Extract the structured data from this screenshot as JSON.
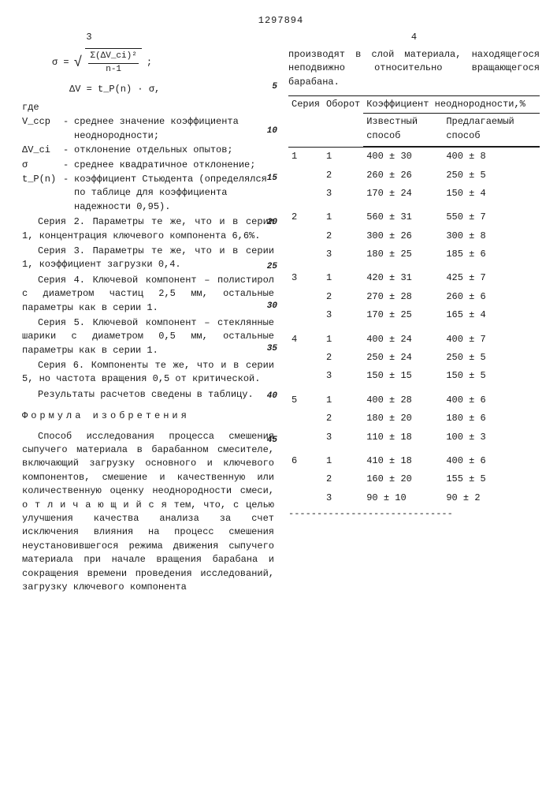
{
  "patent_number": "1297894",
  "page_left": "3",
  "page_right": "4",
  "formula1": {
    "lhs": "σ =",
    "num": "Σ(ΔV_ci)²",
    "den": "n-1",
    "tail": ";"
  },
  "formula2": "ΔV = t_P(n) · σ,",
  "defs_where": "где",
  "defs": [
    {
      "sym": "V_cср",
      "txt": "среднее значение коэффициента неоднородности;"
    },
    {
      "sym": "ΔV_ci",
      "txt": "отклонение отдельных опытов;"
    },
    {
      "sym": "σ",
      "txt": "среднее квадратичное отклонение;"
    },
    {
      "sym": "t_P(n)",
      "txt": "коэффициент Стьюдента (определялся по таблице для коэффициента надежности 0,95)."
    }
  ],
  "paragraphs": [
    "Серия 2. Параметры те же, что и в серии 1, концентрация ключевого компонента 6,6%.",
    "Серия 3. Параметры те же, что и в серии 1, коэффициент загрузки 0,4.",
    "Серия 4. Ключевой компонент – полистирол с диаметром частиц 2,5 мм, остальные параметры как в серии 1.",
    "Серия 5. Ключевой компонент – стеклянные шарики с диаметром 0,5 мм, остальные параметры как в серии 1.",
    "Серия 6. Компоненты те же, что и в серии 5, но частота вращения 0,5 от критической.",
    "Результаты расчетов сведены в таблицу."
  ],
  "section_title": "Формула изобретения",
  "claim_text": "Способ исследования процесса смешения сыпучего материала в барабанном смесителе, включающий загрузку основного и ключевого компонентов, смешение и качественную или количественную оценку неоднородности смеси, о т л и ч а ю щ и й с я тем, что, с целью улучшения качества анализа за счет исключения влияния на процесс смешения неустановившегося режима движения сыпучего материала при начале вращения барабана и сокращения времени проведения исследований, загрузку ключевого компонента",
  "right_intro": "производят в слой материала, находящегося неподвижно относительно вращающегося барабана.",
  "line_numbers": [
    "5",
    "10",
    "15",
    "20",
    "25",
    "30",
    "35",
    "40",
    "45"
  ],
  "line_number_positions": [
    64,
    120,
    180,
    236,
    292,
    342,
    396,
    456,
    512
  ],
  "table": {
    "h_ser": "Серия",
    "h_obo": "Оборот",
    "h_main": "Коэффициент неоднородности,%",
    "h_sub1": "Известный способ",
    "h_sub2": "Предлагаемый способ",
    "rows": [
      {
        "s": "1",
        "o": "1",
        "a": "400 ± 30",
        "b": "400 ± 8"
      },
      {
        "s": "",
        "o": "2",
        "a": "260 ± 26",
        "b": "250 ± 5"
      },
      {
        "s": "",
        "o": "3",
        "a": "170 ± 24",
        "b": "150 ± 4"
      },
      {
        "s": "2",
        "o": "1",
        "a": "560 ± 31",
        "b": "550 ± 7"
      },
      {
        "s": "",
        "o": "2",
        "a": "300 ± 26",
        "b": "300 ± 8"
      },
      {
        "s": "",
        "o": "3",
        "a": "180 ± 25",
        "b": "185 ± 6"
      },
      {
        "s": "3",
        "o": "1",
        "a": "420 ± 31",
        "b": "425 ± 7"
      },
      {
        "s": "",
        "o": "2",
        "a": "270 ± 28",
        "b": "260 ± 6"
      },
      {
        "s": "",
        "o": "3",
        "a": "170 ± 25",
        "b": "165 ± 4"
      },
      {
        "s": "4",
        "o": "1",
        "a": "400 ± 24",
        "b": "400 ± 7"
      },
      {
        "s": "",
        "o": "2",
        "a": "250 ± 24",
        "b": "250 ± 5"
      },
      {
        "s": "",
        "o": "3",
        "a": "150 ± 15",
        "b": "150 ± 5"
      },
      {
        "s": "5",
        "o": "1",
        "a": "400 ± 28",
        "b": "400 ± 6"
      },
      {
        "s": "",
        "o": "2",
        "a": "180 ± 20",
        "b": "180 ± 6"
      },
      {
        "s": "",
        "o": "3",
        "a": "110 ± 18",
        "b": "100 ± 3"
      },
      {
        "s": "6",
        "o": "1",
        "a": "410 ± 18",
        "b": "400 ± 6"
      },
      {
        "s": "",
        "o": "2",
        "a": "160 ± 20",
        "b": "155 ± 5"
      },
      {
        "s": "",
        "o": "3",
        "a": " 90 ± 10",
        "b": " 90 ± 2"
      }
    ],
    "footer_dashes": "-----------------------------"
  }
}
